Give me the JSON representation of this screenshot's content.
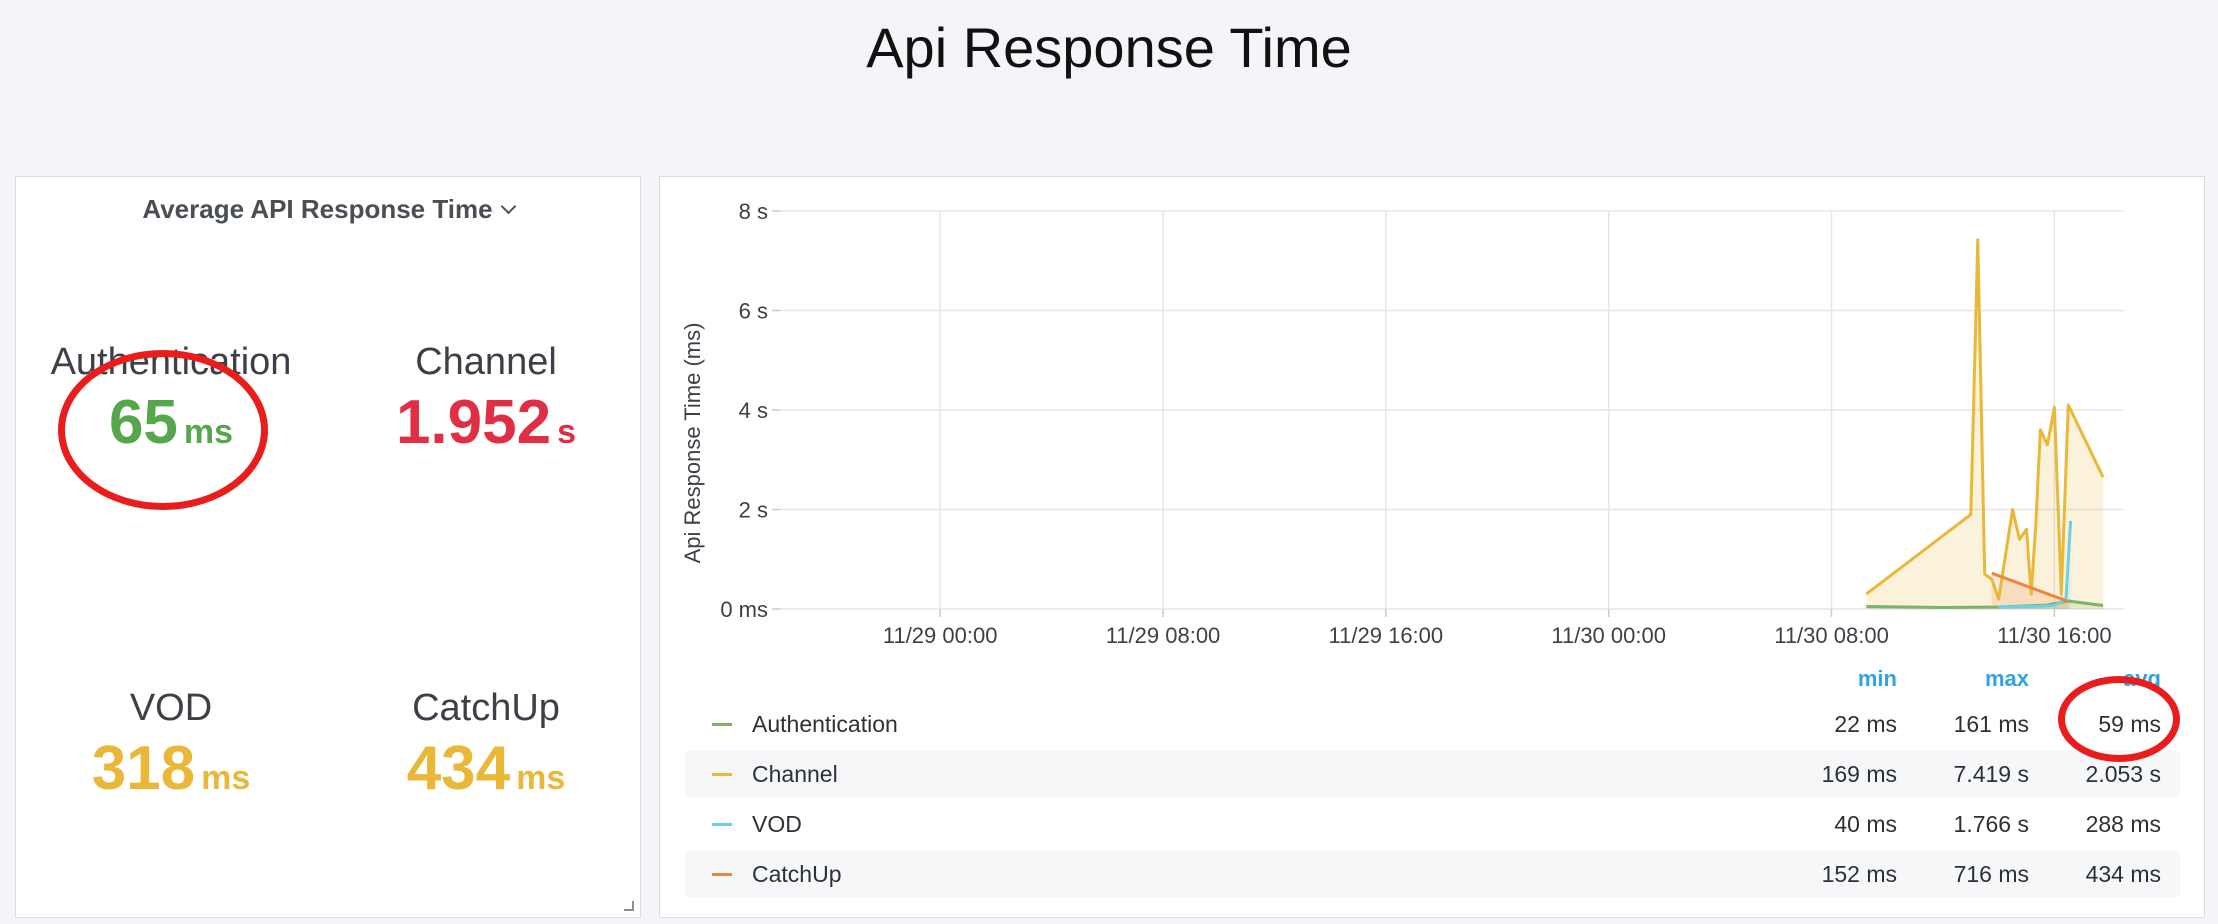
{
  "page": {
    "title": "Api Response Time"
  },
  "stat_panel": {
    "title": "Average API Response Time",
    "stats": [
      {
        "name": "Authentication",
        "value": "65",
        "unit": "ms",
        "color": "#56a64b"
      },
      {
        "name": "Channel",
        "value": "1.952",
        "unit": "s",
        "color": "#e02f44"
      },
      {
        "name": "VOD",
        "value": "318",
        "unit": "ms",
        "color": "#eab839"
      },
      {
        "name": "CatchUp",
        "value": "434",
        "unit": "ms",
        "color": "#eab839"
      }
    ]
  },
  "chart_data": {
    "type": "line",
    "title": "",
    "ylabel": "Api Response Time (ms)",
    "xlabel": "",
    "y_tick_labels": [
      "0 ms",
      "2 s",
      "4 s",
      "6 s",
      "8 s"
    ],
    "y_tick_values": [
      0,
      2,
      4,
      6,
      8
    ],
    "ylim": [
      0,
      8
    ],
    "x_tick_labels": [
      "11/29 00:00",
      "11/29 08:00",
      "11/29 16:00",
      "11/30 00:00",
      "11/30 08:00",
      "11/30 16:00"
    ],
    "x_tick_values": [
      "11/29 00:00",
      "11/29 08:00",
      "11/29 16:00",
      "11/30 00:00",
      "11/30 08:00",
      "11/30 16:00"
    ],
    "xlim": [
      "11/28 18:15",
      "11/30 18:30"
    ],
    "grid": true,
    "series": [
      {
        "name": "Authentication",
        "color": "#7eb26d",
        "x": [
          "11/30 09:15",
          "11/30 12:00",
          "11/30 14:00",
          "11/30 15:45",
          "11/30 16:30",
          "11/30 17:45"
        ],
        "values": [
          0.05,
          0.03,
          0.04,
          0.08,
          0.16,
          0.07
        ]
      },
      {
        "name": "Channel",
        "color": "#eab839",
        "x": [
          "11/30 09:15",
          "11/30 13:00",
          "11/30 13:15",
          "11/30 13:30",
          "11/30 13:45",
          "11/30 14:00",
          "11/30 14:30",
          "11/30 14:45",
          "11/30 15:00",
          "11/30 15:10",
          "11/30 15:20",
          "11/30 15:30",
          "11/30 15:45",
          "11/30 16:00",
          "11/30 16:15",
          "11/30 16:30",
          "11/30 17:45"
        ],
        "values": [
          0.3,
          1.9,
          7.42,
          0.7,
          0.6,
          0.2,
          2.0,
          1.4,
          1.6,
          0.3,
          1.7,
          3.6,
          3.3,
          4.05,
          0.3,
          4.1,
          2.65
        ]
      },
      {
        "name": "VOD",
        "color": "#6ed0e0",
        "x": [
          "11/30 14:00",
          "11/30 15:15",
          "11/30 16:00",
          "11/30 16:25",
          "11/30 16:35"
        ],
        "values": [
          0.04,
          0.05,
          0.07,
          0.2,
          1.77
        ]
      },
      {
        "name": "CatchUp",
        "color": "#ef843c",
        "x": [
          "11/30 13:45",
          "11/30 16:30"
        ],
        "values": [
          0.72,
          0.15
        ]
      }
    ]
  },
  "legend": {
    "headers": {
      "min": "min",
      "max": "max",
      "avg": "avg"
    },
    "rows": [
      {
        "name": "Authentication",
        "color": "#7eb26d",
        "min": "22 ms",
        "max": "161 ms",
        "avg": "59 ms"
      },
      {
        "name": "Channel",
        "color": "#eab839",
        "min": "169 ms",
        "max": "7.419 s",
        "avg": "2.053 s"
      },
      {
        "name": "VOD",
        "color": "#6ed0e0",
        "min": "40 ms",
        "max": "1.766 s",
        "avg": "288 ms"
      },
      {
        "name": "CatchUp",
        "color": "#ef843c",
        "min": "152 ms",
        "max": "716 ms",
        "avg": "434 ms"
      }
    ]
  },
  "annotation_color": "#ea1c1c"
}
